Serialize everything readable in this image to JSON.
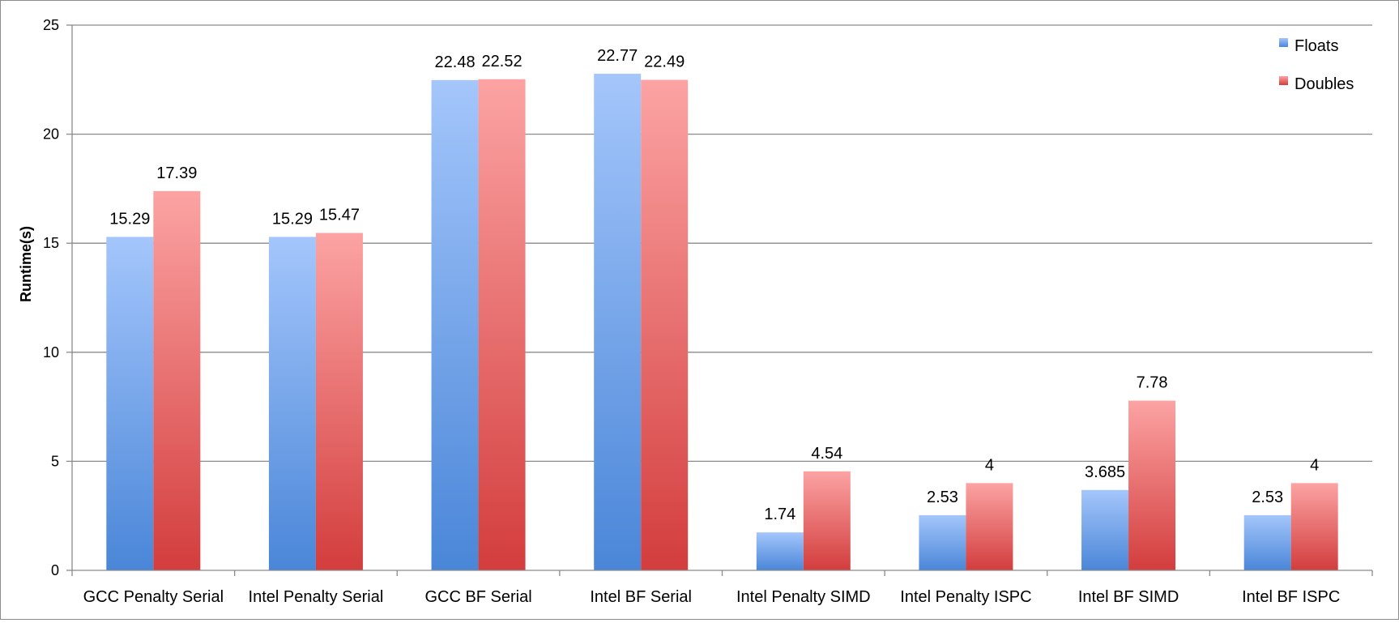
{
  "chart_data": {
    "type": "bar",
    "ylabel": "Runtime(s)",
    "xlabel": "",
    "ylim": [
      0,
      25
    ],
    "yticks": [
      0,
      5,
      10,
      15,
      20,
      25
    ],
    "grid": true,
    "legend_position": "top-right",
    "categories": [
      "GCC Penalty Serial",
      "Intel Penalty Serial",
      "GCC BF Serial",
      "Intel BF Serial",
      "Intel Penalty SIMD",
      "Intel Penalty ISPC",
      "Intel BF SIMD",
      "Intel BF ISPC"
    ],
    "series": [
      {
        "name": "Floats",
        "color": "#4a86d8",
        "color_light": "#a4c6fb",
        "values": [
          15.29,
          15.29,
          22.48,
          22.77,
          1.74,
          2.53,
          3.685,
          2.53
        ],
        "labels": [
          "15.29",
          "15.29",
          "22.48",
          "22.77",
          "1.74",
          "2.53",
          "3.685",
          "2.53"
        ]
      },
      {
        "name": "Doubles",
        "color": "#d33d3d",
        "color_light": "#fca3a3",
        "values": [
          17.39,
          15.47,
          22.52,
          22.49,
          4.54,
          4,
          7.78,
          4
        ],
        "labels": [
          "17.39",
          "15.47",
          "22.52",
          "22.49",
          "4.54",
          "4",
          "7.78",
          "4"
        ]
      }
    ]
  }
}
